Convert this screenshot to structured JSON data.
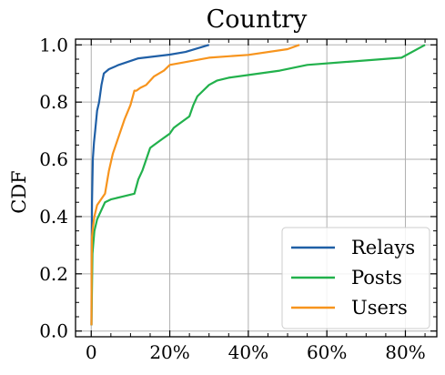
{
  "chart_data": {
    "type": "line",
    "title": "Country",
    "xlabel": "",
    "ylabel": "CDF",
    "xlim": [
      -4,
      88
    ],
    "ylim": [
      -0.02,
      1.02
    ],
    "x_ticks": [
      0,
      20,
      40,
      60,
      80
    ],
    "x_tick_labels": [
      "0",
      "20%",
      "40%",
      "60%",
      "80%"
    ],
    "y_ticks": [
      0.0,
      0.2,
      0.4,
      0.6,
      0.8,
      1.0
    ],
    "y_tick_labels": [
      "0.0",
      "0.2",
      "0.4",
      "0.6",
      "0.8",
      "1.0"
    ],
    "grid": true,
    "legend_position": "bottom-right",
    "series": [
      {
        "name": "Relays",
        "color": "#1f5fa6",
        "x": [
          0.05,
          0.1,
          0.2,
          0.4,
          0.7,
          1.0,
          1.5,
          2.0,
          2.6,
          3.2,
          4.5,
          7,
          12,
          20,
          24,
          30
        ],
        "y": [
          0.02,
          0.25,
          0.45,
          0.6,
          0.66,
          0.7,
          0.77,
          0.8,
          0.86,
          0.9,
          0.915,
          0.93,
          0.953,
          0.966,
          0.975,
          1.0
        ]
      },
      {
        "name": "Posts",
        "color": "#22b14c",
        "x": [
          0.05,
          0.3,
          0.8,
          1.5,
          2.5,
          3.5,
          5,
          8,
          11,
          12,
          13,
          14,
          15,
          16,
          18,
          20,
          21,
          22,
          25,
          26,
          27,
          30,
          32,
          35,
          48,
          55,
          79,
          85
        ],
        "y": [
          0.02,
          0.27,
          0.35,
          0.39,
          0.42,
          0.45,
          0.46,
          0.47,
          0.48,
          0.53,
          0.56,
          0.6,
          0.64,
          0.65,
          0.67,
          0.69,
          0.71,
          0.72,
          0.75,
          0.79,
          0.82,
          0.86,
          0.875,
          0.885,
          0.91,
          0.93,
          0.955,
          1.0
        ]
      },
      {
        "name": "Users",
        "color": "#f7941d",
        "x": [
          0.05,
          0.1,
          0.2,
          0.5,
          0.8,
          1.5,
          2.5,
          3.5,
          4.5,
          5.5,
          6.5,
          7.5,
          8.5,
          10,
          11,
          11.5,
          12.5,
          14,
          16,
          18.5,
          20,
          24,
          30,
          40,
          50,
          53
        ],
        "y": [
          0.02,
          0.25,
          0.33,
          0.37,
          0.4,
          0.44,
          0.46,
          0.48,
          0.56,
          0.62,
          0.66,
          0.7,
          0.74,
          0.79,
          0.84,
          0.84,
          0.85,
          0.86,
          0.89,
          0.91,
          0.93,
          0.94,
          0.955,
          0.965,
          0.985,
          1.0
        ]
      }
    ]
  }
}
